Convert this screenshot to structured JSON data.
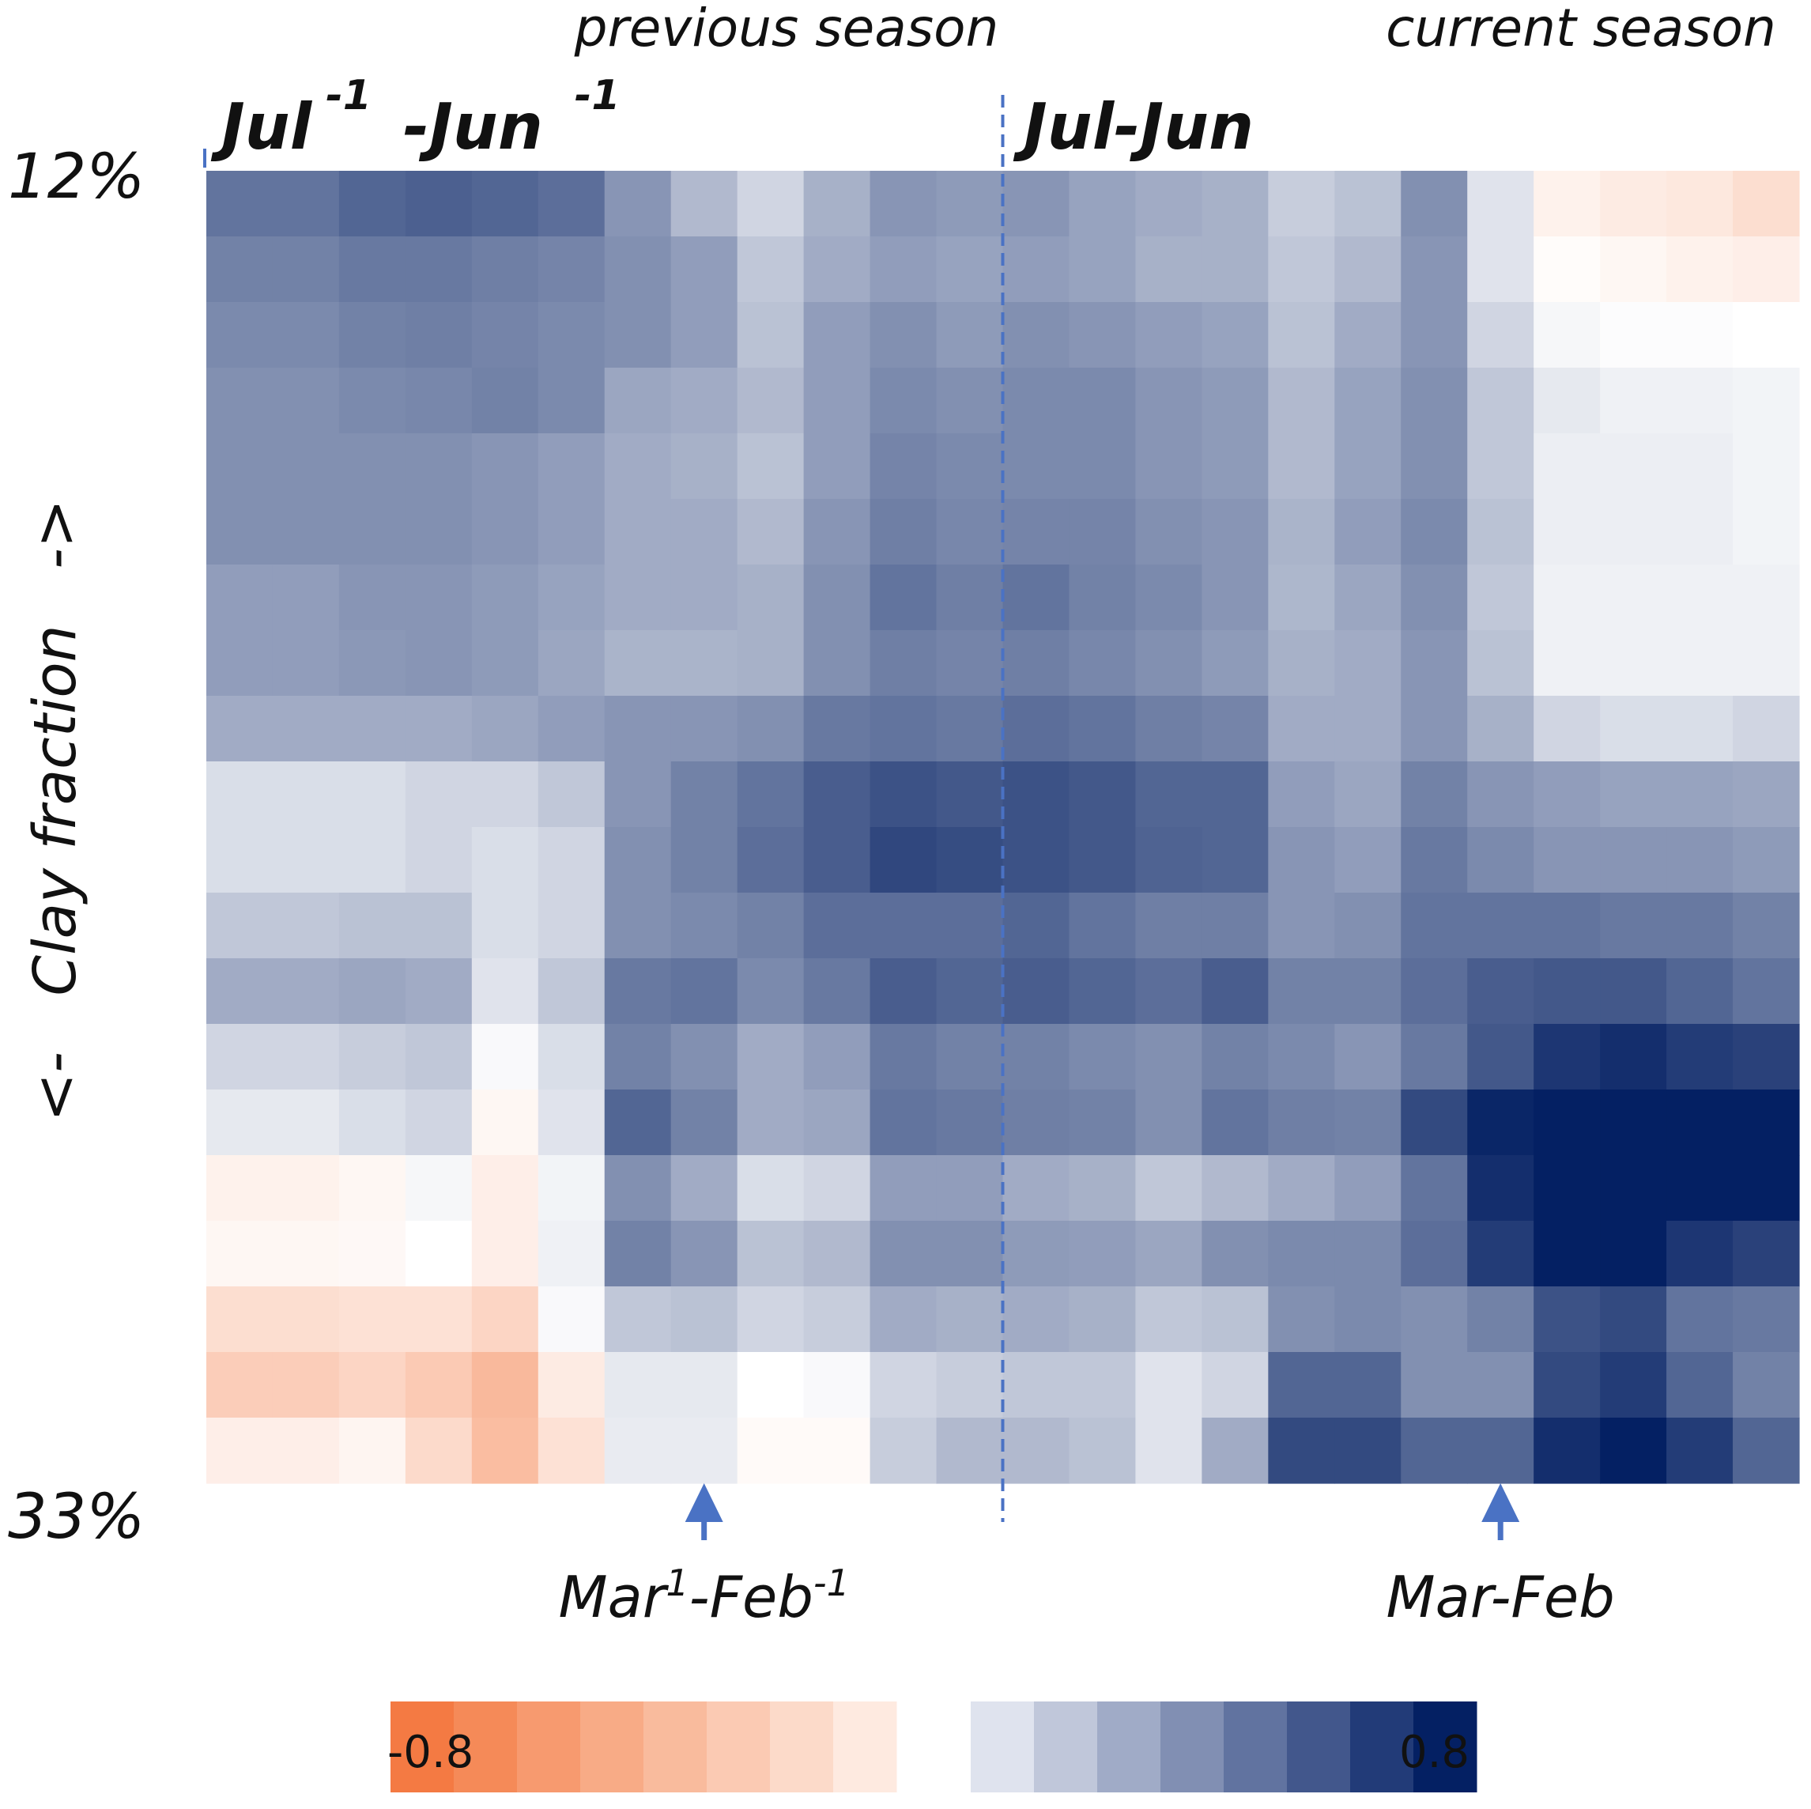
{
  "chart_data": {
    "type": "heatmap",
    "title": "",
    "ylabel": "<-   Clay fraction   ->",
    "y_top_label": "12%",
    "y_bottom_label": "33%",
    "header_left": "previous  season",
    "header_right": "current  season",
    "period_labels": {
      "previous": {
        "main": "Jul",
        "sup": "-1",
        "main2": "-Jun",
        "sup2": "-1"
      },
      "current": {
        "main": "Jul-Jun"
      }
    },
    "markers": [
      {
        "month_index": 8,
        "parts": [
          [
            "Mar",
            ""
          ],
          [
            "1",
            "sup"
          ],
          [
            "-Feb",
            ""
          ],
          [
            "-1",
            "sup"
          ]
        ]
      },
      {
        "month_index": 20,
        "parts": [
          [
            "Mar-Feb",
            ""
          ]
        ]
      }
    ],
    "divider_month_index": 12,
    "colorbar": {
      "min_label": "-0.8",
      "max_label": "0.8",
      "range": [
        -0.8,
        0.8
      ],
      "negative_colors": [
        "#f47a43",
        "#f58a58",
        "#f79a6f",
        "#f8ab86",
        "#f9bb9d",
        "#fbcab3",
        "#fcdac9",
        "#feeae0"
      ],
      "positive_colors": [
        "#dfe3ee",
        "#c0c7da",
        "#a0abc7",
        "#818fb3",
        "#6173a0",
        "#42578c",
        "#223b78",
        "#042063"
      ]
    },
    "n_cols": 24,
    "n_rows": 20,
    "values": [
      [
        0.5,
        0.5,
        0.55,
        0.57,
        0.55,
        0.52,
        0.38,
        0.25,
        0.15,
        0.28,
        0.38,
        0.36,
        0.38,
        0.33,
        0.3,
        0.28,
        0.18,
        0.22,
        0.4,
        0.1,
        -0.08,
        -0.12,
        -0.14,
        -0.2
      ],
      [
        0.45,
        0.45,
        0.48,
        0.48,
        0.46,
        0.44,
        0.4,
        0.35,
        0.2,
        0.3,
        0.35,
        0.33,
        0.35,
        0.33,
        0.28,
        0.28,
        0.2,
        0.25,
        0.38,
        0.1,
        -0.02,
        -0.05,
        -0.08,
        -0.1
      ],
      [
        0.42,
        0.42,
        0.45,
        0.46,
        0.44,
        0.42,
        0.4,
        0.35,
        0.22,
        0.35,
        0.4,
        0.36,
        0.4,
        0.38,
        0.35,
        0.33,
        0.22,
        0.3,
        0.38,
        0.15,
        0.03,
        0.01,
        0.01,
        0.0
      ],
      [
        0.4,
        0.4,
        0.42,
        0.43,
        0.45,
        0.42,
        0.32,
        0.3,
        0.25,
        0.35,
        0.42,
        0.4,
        0.42,
        0.42,
        0.38,
        0.36,
        0.25,
        0.33,
        0.4,
        0.2,
        0.08,
        0.05,
        0.05,
        0.04
      ],
      [
        0.4,
        0.4,
        0.4,
        0.4,
        0.38,
        0.35,
        0.3,
        0.28,
        0.22,
        0.35,
        0.44,
        0.42,
        0.42,
        0.42,
        0.38,
        0.36,
        0.25,
        0.33,
        0.4,
        0.2,
        0.06,
        0.06,
        0.06,
        0.04
      ],
      [
        0.4,
        0.4,
        0.4,
        0.4,
        0.38,
        0.35,
        0.3,
        0.3,
        0.25,
        0.38,
        0.46,
        0.43,
        0.44,
        0.44,
        0.4,
        0.38,
        0.27,
        0.35,
        0.42,
        0.22,
        0.06,
        0.06,
        0.06,
        0.04
      ],
      [
        0.35,
        0.35,
        0.38,
        0.38,
        0.36,
        0.33,
        0.3,
        0.3,
        0.28,
        0.4,
        0.5,
        0.46,
        0.5,
        0.45,
        0.42,
        0.38,
        0.26,
        0.32,
        0.4,
        0.2,
        0.05,
        0.05,
        0.05,
        0.05
      ],
      [
        0.35,
        0.35,
        0.37,
        0.38,
        0.36,
        0.32,
        0.27,
        0.27,
        0.28,
        0.4,
        0.46,
        0.44,
        0.46,
        0.43,
        0.4,
        0.36,
        0.28,
        0.3,
        0.38,
        0.22,
        0.05,
        0.05,
        0.05,
        0.05
      ],
      [
        0.3,
        0.3,
        0.3,
        0.3,
        0.32,
        0.35,
        0.38,
        0.38,
        0.4,
        0.48,
        0.5,
        0.48,
        0.52,
        0.5,
        0.46,
        0.44,
        0.3,
        0.3,
        0.38,
        0.28,
        0.15,
        0.12,
        0.12,
        0.15
      ],
      [
        0.12,
        0.12,
        0.12,
        0.15,
        0.15,
        0.2,
        0.38,
        0.45,
        0.5,
        0.58,
        0.62,
        0.6,
        0.62,
        0.6,
        0.55,
        0.55,
        0.35,
        0.32,
        0.45,
        0.38,
        0.35,
        0.33,
        0.33,
        0.32
      ],
      [
        0.12,
        0.12,
        0.12,
        0.15,
        0.12,
        0.15,
        0.4,
        0.45,
        0.52,
        0.58,
        0.66,
        0.64,
        0.62,
        0.6,
        0.56,
        0.55,
        0.38,
        0.35,
        0.48,
        0.42,
        0.38,
        0.38,
        0.38,
        0.36
      ],
      [
        0.2,
        0.2,
        0.22,
        0.22,
        0.12,
        0.15,
        0.4,
        0.42,
        0.45,
        0.52,
        0.52,
        0.52,
        0.55,
        0.5,
        0.46,
        0.46,
        0.38,
        0.4,
        0.5,
        0.5,
        0.5,
        0.48,
        0.48,
        0.45
      ],
      [
        0.3,
        0.3,
        0.32,
        0.3,
        0.1,
        0.2,
        0.48,
        0.5,
        0.42,
        0.48,
        0.58,
        0.55,
        0.58,
        0.55,
        0.52,
        0.58,
        0.45,
        0.45,
        0.52,
        0.58,
        0.6,
        0.6,
        0.55,
        0.5
      ],
      [
        0.15,
        0.15,
        0.18,
        0.2,
        0.02,
        0.12,
        0.45,
        0.4,
        0.3,
        0.35,
        0.48,
        0.45,
        0.45,
        0.42,
        0.4,
        0.45,
        0.42,
        0.38,
        0.48,
        0.6,
        0.72,
        0.75,
        0.7,
        0.68
      ],
      [
        0.08,
        0.08,
        0.12,
        0.15,
        -0.05,
        0.1,
        0.55,
        0.45,
        0.3,
        0.32,
        0.5,
        0.48,
        0.46,
        0.45,
        0.4,
        0.5,
        0.46,
        0.45,
        0.65,
        0.78,
        0.85,
        0.85,
        0.85,
        0.82
      ],
      [
        -0.08,
        -0.08,
        -0.05,
        0.03,
        -0.1,
        0.04,
        0.4,
        0.3,
        0.12,
        0.15,
        0.35,
        0.35,
        0.3,
        0.28,
        0.2,
        0.25,
        0.3,
        0.35,
        0.5,
        0.75,
        0.85,
        0.85,
        0.85,
        0.85
      ],
      [
        -0.05,
        -0.05,
        -0.04,
        0.0,
        -0.1,
        0.05,
        0.45,
        0.38,
        0.22,
        0.25,
        0.4,
        0.4,
        0.36,
        0.35,
        0.32,
        0.4,
        0.42,
        0.42,
        0.52,
        0.7,
        0.82,
        0.8,
        0.72,
        0.68
      ],
      [
        -0.2,
        -0.2,
        -0.18,
        -0.18,
        -0.25,
        0.02,
        0.2,
        0.22,
        0.15,
        0.18,
        0.3,
        0.28,
        0.3,
        0.28,
        0.2,
        0.22,
        0.4,
        0.42,
        0.4,
        0.45,
        0.62,
        0.65,
        0.5,
        0.48
      ],
      [
        -0.3,
        -0.3,
        -0.25,
        -0.32,
        -0.42,
        -0.12,
        0.08,
        0.08,
        0.0,
        0.02,
        0.15,
        0.18,
        0.2,
        0.2,
        0.1,
        0.15,
        0.55,
        0.55,
        0.4,
        0.4,
        0.65,
        0.7,
        0.55,
        0.45
      ],
      [
        -0.1,
        -0.1,
        -0.06,
        -0.22,
        -0.4,
        -0.18,
        0.07,
        0.07,
        -0.03,
        -0.03,
        0.18,
        0.25,
        0.25,
        0.22,
        0.1,
        0.3,
        0.65,
        0.65,
        0.55,
        0.55,
        0.75,
        0.85,
        0.7,
        0.55
      ]
    ]
  }
}
